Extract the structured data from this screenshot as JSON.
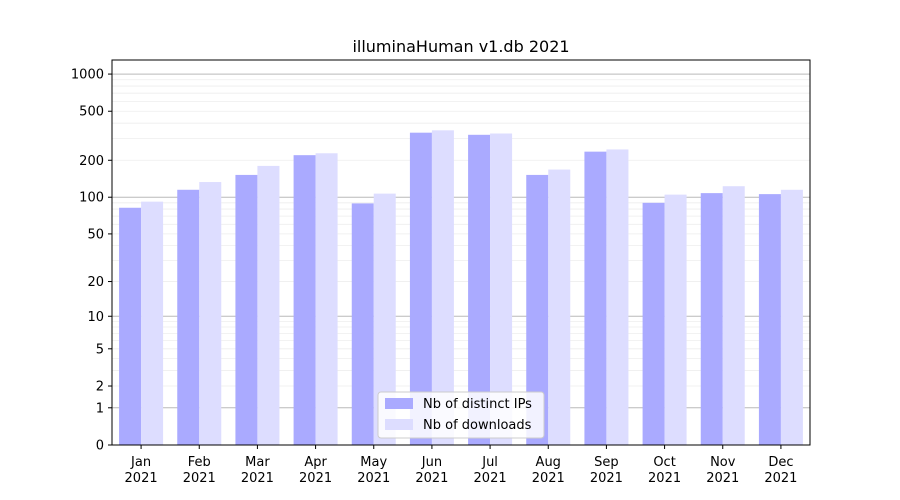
{
  "chart_data": {
    "type": "bar",
    "title": "illuminaHuman v1.db 2021",
    "xlabel": "",
    "ylabel": "",
    "y_scale": "log(1+y)",
    "ylim": [
      0,
      1300
    ],
    "y_ticks": [
      0,
      1,
      2,
      5,
      10,
      20,
      50,
      100,
      200,
      500,
      1000
    ],
    "y_tick_labels": [
      "0",
      "1",
      "2",
      "5",
      "10",
      "20",
      "50",
      "100",
      "200",
      "500",
      "1000"
    ],
    "grid": true,
    "legend_position": "lower-center",
    "categories": [
      {
        "month": "Jan",
        "year": "2021"
      },
      {
        "month": "Feb",
        "year": "2021"
      },
      {
        "month": "Mar",
        "year": "2021"
      },
      {
        "month": "Apr",
        "year": "2021"
      },
      {
        "month": "May",
        "year": "2021"
      },
      {
        "month": "Jun",
        "year": "2021"
      },
      {
        "month": "Jul",
        "year": "2021"
      },
      {
        "month": "Aug",
        "year": "2021"
      },
      {
        "month": "Sep",
        "year": "2021"
      },
      {
        "month": "Oct",
        "year": "2021"
      },
      {
        "month": "Nov",
        "year": "2021"
      },
      {
        "month": "Dec",
        "year": "2021"
      }
    ],
    "series": [
      {
        "name": "Nb of distinct IPs",
        "color": "#aaaaff",
        "values": [
          82,
          115,
          152,
          220,
          89,
          335,
          322,
          152,
          235,
          90,
          108,
          106
        ]
      },
      {
        "name": "Nb of downloads",
        "color": "#ddddff",
        "values": [
          92,
          133,
          180,
          228,
          107,
          350,
          330,
          168,
          245,
          105,
          123,
          115
        ]
      }
    ]
  }
}
